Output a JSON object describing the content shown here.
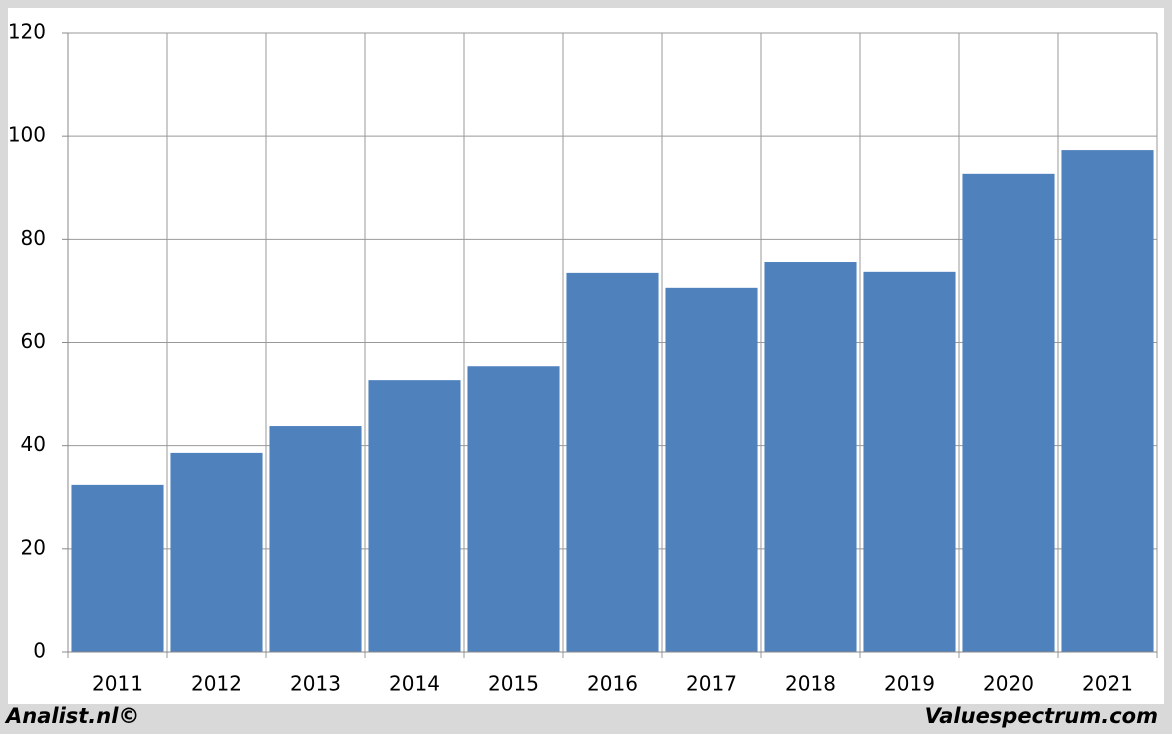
{
  "chart_data": {
    "type": "bar",
    "categories": [
      "2011",
      "2012",
      "2013",
      "2014",
      "2015",
      "2016",
      "2017",
      "2018",
      "2019",
      "2020",
      "2021"
    ],
    "values": [
      32.4,
      38.6,
      43.8,
      52.7,
      55.4,
      73.5,
      70.6,
      75.6,
      73.7,
      92.7,
      97.3
    ],
    "color": "#4f81bd",
    "ylim": [
      0,
      120
    ],
    "yticks": [
      0,
      20,
      40,
      60,
      80,
      100,
      120
    ],
    "grid": true
  },
  "footer": {
    "left": "Analist.nl©",
    "right": "Valuespectrum.com"
  }
}
